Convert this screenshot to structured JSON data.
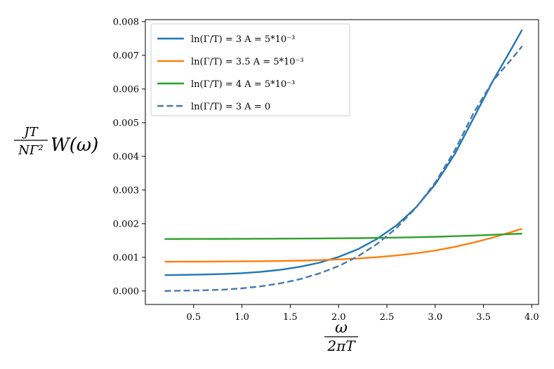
{
  "chart_data": {
    "type": "line",
    "title": "",
    "xlabel": {
      "numerator": "ω",
      "denominator": "2πT"
    },
    "ylabel": {
      "numerator": "JT",
      "denominator": "NΓ²",
      "tail": "W(ω)"
    },
    "xlim": [
      0.0,
      4.07
    ],
    "ylim": [
      -0.0004,
      0.00806
    ],
    "xticks": [
      0.5,
      1.0,
      1.5,
      2.0,
      2.5,
      3.0,
      3.5,
      4.0
    ],
    "xtick_labels": [
      "0.5",
      "1.0",
      "1.5",
      "2.0",
      "2.5",
      "3.0",
      "3.5",
      "4.0"
    ],
    "yticks": [
      0.0,
      0.001,
      0.002,
      0.003,
      0.004,
      0.005,
      0.006,
      0.007,
      0.008
    ],
    "ytick_labels": [
      "0.000",
      "0.001",
      "0.002",
      "0.003",
      "0.004",
      "0.005",
      "0.006",
      "0.007",
      "0.008"
    ],
    "grid": false,
    "legend_position": "top-left",
    "x": [
      0.2,
      0.4,
      0.6,
      0.8,
      1.0,
      1.2,
      1.4,
      1.6,
      1.8,
      2.0,
      2.2,
      2.4,
      2.6,
      2.8,
      3.0,
      3.2,
      3.4,
      3.6,
      3.8,
      3.9
    ],
    "series": [
      {
        "name": "ln(Γ/T) = 3   A = 5*10⁻³",
        "color": "#1f77b4",
        "dash": "solid",
        "values": [
          0.00047,
          0.00048,
          0.00049,
          0.000505,
          0.00053,
          0.00057,
          0.00063,
          0.00072,
          0.00084,
          0.00101,
          0.00124,
          0.00155,
          0.00195,
          0.00248,
          0.00317,
          0.00405,
          0.00515,
          0.00625,
          0.00725,
          0.00776
        ]
      },
      {
        "name": "ln(Γ/T) = 3.5   A = 5*10⁻³",
        "color": "#ff7f0e",
        "dash": "solid",
        "values": [
          0.00087,
          0.000872,
          0.000874,
          0.000877,
          0.00088,
          0.000885,
          0.000892,
          0.000902,
          0.000917,
          0.000938,
          0.000966,
          0.001005,
          0.001055,
          0.00112,
          0.0012,
          0.00131,
          0.00144,
          0.00159,
          0.00176,
          0.00185
        ]
      },
      {
        "name": "ln(Γ/T) = 4   A = 5*10⁻³",
        "color": "#2ca02c",
        "dash": "solid",
        "values": [
          0.001545,
          0.001546,
          0.001547,
          0.001548,
          0.00155,
          0.001552,
          0.001554,
          0.001557,
          0.00156,
          0.001564,
          0.00157,
          0.001577,
          0.001585,
          0.001596,
          0.00161,
          0.001627,
          0.001647,
          0.00167,
          0.001693,
          0.001705
        ]
      },
      {
        "name": "ln(Γ/T) = 3   A = 0",
        "color": "#4a78ad",
        "dash": "dashed",
        "values": [
          0.0,
          1e-05,
          2e-05,
          4e-05,
          8e-05,
          0.00014,
          0.00023,
          0.00035,
          0.00052,
          0.00074,
          0.00103,
          0.0014,
          0.00187,
          0.00247,
          0.00322,
          0.00416,
          0.0053,
          0.00625,
          0.00692,
          0.00727
        ]
      }
    ]
  }
}
